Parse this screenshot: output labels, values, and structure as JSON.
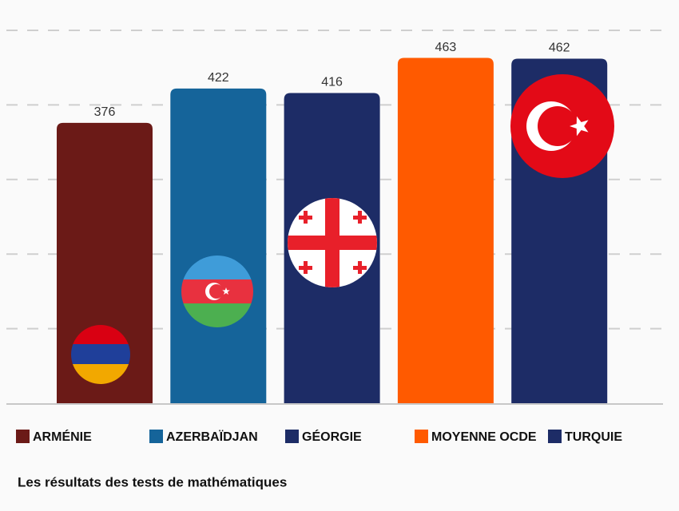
{
  "chart_data": {
    "type": "bar",
    "title": "Les résultats des tests de mathématiques",
    "categories": [
      "ARMÉNIE",
      "AZERBAÏDJAN",
      "GÉORGIE",
      "MOYENNE OCDE",
      "TURQUIE"
    ],
    "values": [
      376,
      422,
      416,
      463,
      462
    ],
    "colors": [
      "#6b1a17",
      "#15649a",
      "#1d2c66",
      "#ff5a00",
      "#1d2c66"
    ],
    "ylim": [
      0,
      500
    ],
    "yticks": [
      100,
      200,
      300,
      400,
      500
    ],
    "grid": true
  }
}
